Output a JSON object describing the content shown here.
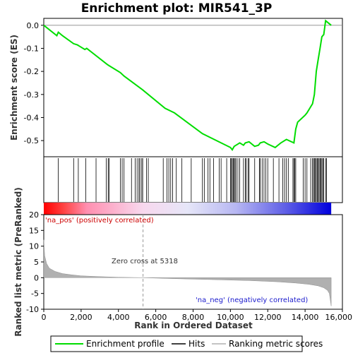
{
  "chart_data": {
    "title": "Enrichment plot: MIR541_3P",
    "type": "line",
    "top_panel": {
      "ylabel": "Enrichment score (ES)",
      "ylim": [
        -0.57,
        0.03
      ],
      "yticks": [
        0.0,
        -0.1,
        -0.2,
        -0.3,
        -0.4,
        -0.5
      ],
      "ytick_labels": [
        "0.0",
        "-0.1",
        "-0.2",
        "-0.3",
        "-0.4",
        "-0.5"
      ],
      "series": [
        {
          "name": "Enrichment profile",
          "color": "#00dd00",
          "x": [
            0,
            700,
            780,
            1000,
            1600,
            1800,
            1900,
            2200,
            2300,
            3400,
            3500,
            4100,
            4300,
            5300,
            6500,
            7000,
            7500,
            8500,
            9500,
            10000,
            10100,
            10200,
            10300,
            10500,
            10700,
            10800,
            11000,
            11300,
            11500,
            11600,
            11800,
            12000,
            12400,
            12700,
            12800,
            13000,
            13400,
            13500,
            13600,
            14000,
            14100,
            14400,
            14500,
            14600,
            14700,
            14800,
            14900,
            15000,
            15100,
            15400
          ],
          "y": [
            0.0,
            -0.045,
            -0.03,
            -0.045,
            -0.08,
            -0.085,
            -0.09,
            -0.105,
            -0.1,
            -0.17,
            -0.175,
            -0.205,
            -0.22,
            -0.28,
            -0.36,
            -0.38,
            -0.41,
            -0.47,
            -0.51,
            -0.53,
            -0.54,
            -0.525,
            -0.52,
            -0.51,
            -0.52,
            -0.51,
            -0.505,
            -0.525,
            -0.52,
            -0.51,
            -0.505,
            -0.515,
            -0.53,
            -0.51,
            -0.505,
            -0.495,
            -0.51,
            -0.45,
            -0.42,
            -0.39,
            -0.38,
            -0.34,
            -0.3,
            -0.2,
            -0.15,
            -0.1,
            -0.05,
            -0.04,
            0.02,
            0.0
          ]
        }
      ],
      "hits": [
        780,
        1600,
        1850,
        2250,
        2800,
        3350,
        3450,
        3500,
        4100,
        4200,
        4300,
        4700,
        4900,
        5000,
        5100,
        5150,
        5250,
        5300,
        5500,
        5600,
        6400,
        6600,
        6700,
        6800,
        6900,
        7100,
        7400,
        7900,
        8500,
        8600,
        8800,
        8900,
        9100,
        9400,
        9500,
        9800,
        10000,
        10050,
        10100,
        10150,
        10200,
        10250,
        10300,
        10400,
        10500,
        10700,
        10800,
        10850,
        10950,
        11000,
        11300,
        11550,
        11600,
        11700,
        11800,
        11900,
        12000,
        12300,
        12600,
        12800,
        12900,
        13000,
        13100,
        13350,
        13400,
        13450,
        13500,
        13900,
        14000,
        14100,
        14300,
        14400,
        14450,
        14500,
        14550,
        14600,
        14650,
        14700,
        14750,
        14800,
        14850,
        14900,
        14950,
        15000,
        15100,
        15150
      ]
    },
    "ranked_panel": {
      "ylabel": "Ranked list metric (PreRanked)",
      "ylim": [
        -10,
        20
      ],
      "yticks": [
        20,
        15,
        10,
        5,
        0,
        -5,
        -10
      ],
      "ytick_labels": [
        "20",
        "15",
        "10",
        "5",
        "0",
        "-5",
        "-10"
      ],
      "pos_label": "'na_pos' (positively correlated)",
      "neg_label": "'na_neg' (negatively correlated)",
      "zero_cross_label": "Zero cross at 5318",
      "zero_cross": 5318,
      "series": [
        {
          "name": "Ranking metric scores",
          "color": "#b0b0b0",
          "x": [
            0,
            50,
            150,
            300,
            600,
            1000,
            1500,
            2000,
            3000,
            4000,
            5318,
            7000,
            9000,
            11000,
            12500,
            13500,
            14200,
            14700,
            15000,
            15200,
            15300,
            15350,
            15400
          ],
          "y": [
            12,
            7,
            4.5,
            3,
            2,
            1.3,
            0.9,
            0.6,
            0.35,
            0.15,
            0,
            -0.3,
            -0.6,
            -0.9,
            -1.3,
            -1.7,
            -2.1,
            -2.6,
            -3.2,
            -4,
            -5,
            -7,
            -9
          ]
        }
      ]
    },
    "xlabel": "Rank in Ordered Dataset",
    "xlim": [
      0,
      16000
    ],
    "xticks": [
      0,
      2000,
      4000,
      6000,
      8000,
      10000,
      12000,
      14000,
      16000
    ],
    "xtick_labels": [
      "0",
      "2,000",
      "4,000",
      "6,000",
      "8,000",
      "10,000",
      "12,000",
      "14,000",
      "16,000"
    ],
    "data_end": 15400,
    "legend": {
      "placement": "bottom",
      "items": [
        {
          "label": "Enrichment profile",
          "color": "#00dd00"
        },
        {
          "label": "Hits",
          "color": "#000000"
        },
        {
          "label": "Ranking metric scores",
          "color": "#b0b0b0"
        }
      ]
    },
    "colors": {
      "heat_pos": "#ff0000",
      "heat_mid": "#ffffff",
      "heat_neg": "#0000ff",
      "pos_label": "#cc0000",
      "neg_label": "#1a1acc"
    }
  }
}
